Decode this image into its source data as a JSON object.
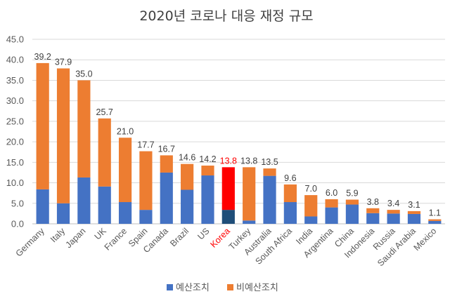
{
  "chart_data": {
    "type": "bar",
    "stacked": true,
    "title": "2020년 코로나 대응 재정 규모",
    "xlabel": "",
    "ylabel": "",
    "ylim": [
      0,
      45
    ],
    "yticks": [
      "0.0",
      "5.0",
      "10.0",
      "15.0",
      "20.0",
      "25.0",
      "30.0",
      "35.0",
      "40.0",
      "45.0"
    ],
    "grid": true,
    "legend_position": "bottom",
    "categories": [
      "Germany",
      "Italy",
      "Japan",
      "UK",
      "France",
      "Spain",
      "Canada",
      "Brazil",
      "US",
      "Korea",
      "Turkey",
      "Australia",
      "South Africa",
      "India",
      "Argentina",
      "China",
      "Indonesia",
      "Russia",
      "Saudi Arabia",
      "Mexico"
    ],
    "totals": [
      "39.2",
      "37.9",
      "35.0",
      "25.7",
      "21.0",
      "17.7",
      "16.7",
      "14.6",
      "14.2",
      "13.8",
      "13.8",
      "13.5",
      "9.6",
      "7.0",
      "6.0",
      "5.9",
      "3.8",
      "3.4",
      "3.1",
      "1.1"
    ],
    "highlight_category": "Korea",
    "series": [
      {
        "name": "예산조치",
        "color": "#4472C4",
        "highlight_color": "#1F4E79",
        "values": [
          8.4,
          5.0,
          11.3,
          9.1,
          5.3,
          3.4,
          12.5,
          8.3,
          11.8,
          3.4,
          0.8,
          11.7,
          5.3,
          1.8,
          4.0,
          4.7,
          2.6,
          2.5,
          2.4,
          0.7
        ]
      },
      {
        "name": "비예산조치",
        "color": "#ED7D31",
        "highlight_color": "#FF0000",
        "values": [
          30.8,
          32.9,
          23.7,
          16.6,
          15.7,
          14.3,
          4.2,
          6.3,
          2.4,
          10.4,
          13.0,
          1.8,
          4.3,
          5.2,
          2.0,
          1.2,
          1.2,
          0.9,
          0.7,
          0.4
        ]
      }
    ],
    "colors": {
      "highlight_text": "#FF0000",
      "grid": "#D9D9D9",
      "axis": "#BFBFBF"
    }
  }
}
